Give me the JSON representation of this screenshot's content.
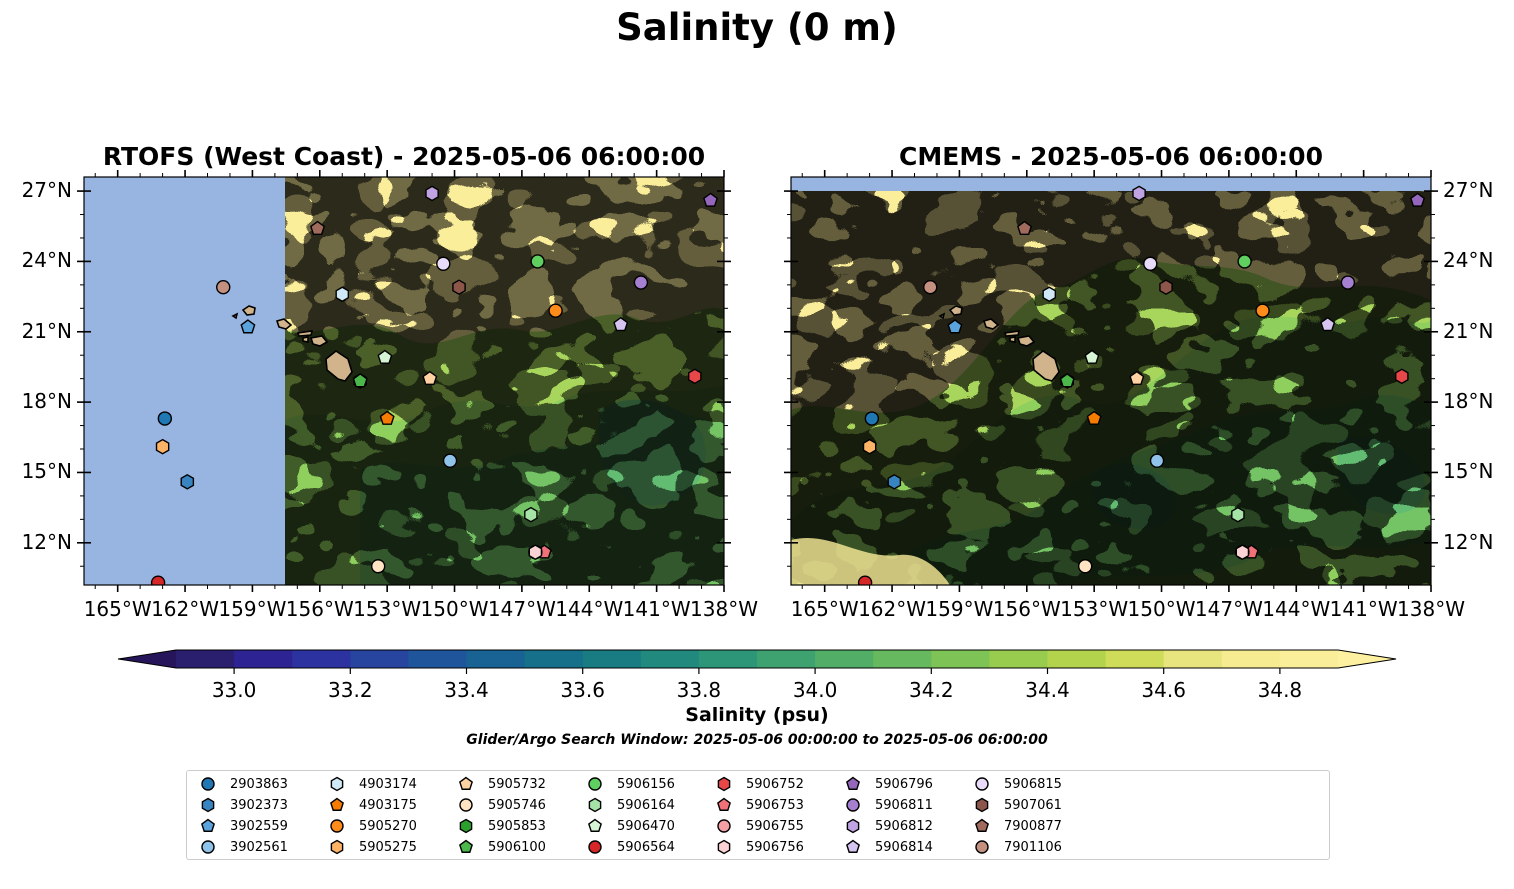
{
  "figure": {
    "title": "Salinity (0 m)",
    "colorbar_label": "Salinity (psu)",
    "window_note": "Glider/Argo Search Window: 2025-05-06 00:00:00 to 2025-05-06 06:00:00"
  },
  "chart_data": [
    {
      "type": "heatmap",
      "title": "RTOFS (West Coast) - 2025-05-06 06:00:00",
      "variable": "sea surface salinity",
      "units": "psu",
      "x_ticks": [
        "165°W",
        "162°W",
        "159°W",
        "156°W",
        "153°W",
        "150°W",
        "147°W",
        "144°W",
        "141°W",
        "138°W"
      ],
      "y_ticks": [
        "12°N",
        "15°N",
        "18°N",
        "21°N",
        "24°N",
        "27°N"
      ],
      "xlim": [
        -166.5,
        -138
      ],
      "ylim": [
        10.2,
        27.6
      ],
      "no_data_west_of_lon": -157.5,
      "y_axis_side": "left"
    },
    {
      "type": "heatmap",
      "title": "CMEMS - 2025-05-06 06:00:00",
      "variable": "sea surface salinity",
      "units": "psu",
      "x_ticks": [
        "165°W",
        "162°W",
        "159°W",
        "156°W",
        "153°W",
        "150°W",
        "147°W",
        "144°W",
        "141°W",
        "138°W"
      ],
      "y_ticks": [
        "12°N",
        "15°N",
        "18°N",
        "21°N",
        "24°N",
        "27°N"
      ],
      "xlim": [
        -166.5,
        -138
      ],
      "ylim": [
        10.2,
        27.6
      ],
      "no_data_north_of_lat": 27.0,
      "y_axis_side": "right"
    }
  ],
  "colorbar": {
    "min": 32.9,
    "max": 34.9,
    "step": 0.1,
    "extend": "both",
    "ticks": [
      "33.0",
      "33.2",
      "33.4",
      "33.6",
      "33.8",
      "34.0",
      "34.2",
      "34.4",
      "34.6",
      "34.8"
    ],
    "colors": [
      "#2a1e6e",
      "#2d2392",
      "#2c329f",
      "#27449f",
      "#1f559b",
      "#186393",
      "#167089",
      "#197c83",
      "#22897e",
      "#2e9678",
      "#3da26f",
      "#52ad66",
      "#66b95e",
      "#7ec356",
      "#98cc4f",
      "#b3d34c",
      "#cfdc59",
      "#e8e57f",
      "#f7eb91",
      "#fbee9a"
    ],
    "under_color": "#26155a",
    "over_color": "#fdf0a0"
  },
  "colors": {
    "no_data": "#98b4e0",
    "land": "#d2b48c",
    "background_high": "#fbee9a",
    "mid_green": "#8fcf5d",
    "low_green": "#62bd72"
  },
  "floats": [
    {
      "id": "2903863",
      "lon": -162.9,
      "lat": 17.3,
      "shape": "circle",
      "color": "#1f77b4"
    },
    {
      "id": "3902373",
      "lon": -161.9,
      "lat": 14.6,
      "shape": "hexagon",
      "color": "#3784c0"
    },
    {
      "id": "3902559",
      "lon": -159.2,
      "lat": 21.2,
      "shape": "pentagon",
      "color": "#5aa3dc"
    },
    {
      "id": "3902561",
      "lon": -150.2,
      "lat": 15.5,
      "shape": "circle",
      "color": "#8fc3ea"
    },
    {
      "id": "4903174",
      "lon": -155.0,
      "lat": 22.6,
      "shape": "hexagon",
      "color": "#cfe9f7"
    },
    {
      "id": "4903175",
      "lon": -153.0,
      "lat": 17.3,
      "shape": "pentagon",
      "color": "#f57c00"
    },
    {
      "id": "5905270",
      "lon": -145.5,
      "lat": 21.9,
      "shape": "circle",
      "color": "#ff8c1a"
    },
    {
      "id": "5905275",
      "lon": -163.0,
      "lat": 16.1,
      "shape": "hexagon",
      "color": "#ffb366"
    },
    {
      "id": "5905732",
      "lon": -151.1,
      "lat": 19.0,
      "shape": "pentagon",
      "color": "#ffd1a3"
    },
    {
      "id": "5905746",
      "lon": -153.4,
      "lat": 11.0,
      "shape": "circle",
      "color": "#ffe3c2"
    },
    {
      "id": "5905853",
      "lon": -154.2,
      "lat": 18.9,
      "shape": "hexagon",
      "color": "#2ca02c"
    },
    {
      "id": "5906100",
      "lon": -154.2,
      "lat": 18.9,
      "shape": "pentagon",
      "color": "#4cb84c"
    },
    {
      "id": "5906156",
      "lon": -146.3,
      "lat": 24.0,
      "shape": "circle",
      "color": "#5fcf5f"
    },
    {
      "id": "5906164",
      "lon": -146.6,
      "lat": 13.2,
      "shape": "hexagon",
      "color": "#a6e3a6"
    },
    {
      "id": "5906470",
      "lon": -153.1,
      "lat": 19.9,
      "shape": "pentagon",
      "color": "#d5f5d5"
    },
    {
      "id": "5906564",
      "lon": -163.2,
      "lat": 10.3,
      "shape": "circle",
      "color": "#d62728"
    },
    {
      "id": "5906752",
      "lon": -139.3,
      "lat": 19.1,
      "shape": "hexagon",
      "color": "#e8474a"
    },
    {
      "id": "5906753",
      "lon": -146.0,
      "lat": 11.6,
      "shape": "pentagon",
      "color": "#f07178"
    },
    {
      "id": "5906755",
      "lon": -146.4,
      "lat": 11.6,
      "shape": "circle",
      "color": "#f5a0a4"
    },
    {
      "id": "5906756",
      "lon": -146.4,
      "lat": 11.6,
      "shape": "hexagon",
      "color": "#fbd3d5"
    },
    {
      "id": "5906796",
      "lon": -138.6,
      "lat": 26.6,
      "shape": "pentagon",
      "color": "#9467bd"
    },
    {
      "id": "5906811",
      "lon": -141.7,
      "lat": 23.1,
      "shape": "circle",
      "color": "#a57fd0"
    },
    {
      "id": "5906812",
      "lon": -151.0,
      "lat": 26.9,
      "shape": "hexagon",
      "color": "#bfa3e3"
    },
    {
      "id": "5906814",
      "lon": -142.6,
      "lat": 21.3,
      "shape": "pentagon",
      "color": "#d6c4f0"
    },
    {
      "id": "5906815",
      "lon": -150.5,
      "lat": 23.9,
      "shape": "circle",
      "color": "#e8dcfa"
    },
    {
      "id": "5907061",
      "lon": -149.8,
      "lat": 22.9,
      "shape": "hexagon",
      "color": "#8c564b"
    },
    {
      "id": "7900877",
      "lon": -156.1,
      "lat": 25.4,
      "shape": "pentagon",
      "color": "#a06b5c"
    },
    {
      "id": "7901106",
      "lon": -160.3,
      "lat": 22.9,
      "shape": "circle",
      "color": "#c49080"
    }
  ]
}
